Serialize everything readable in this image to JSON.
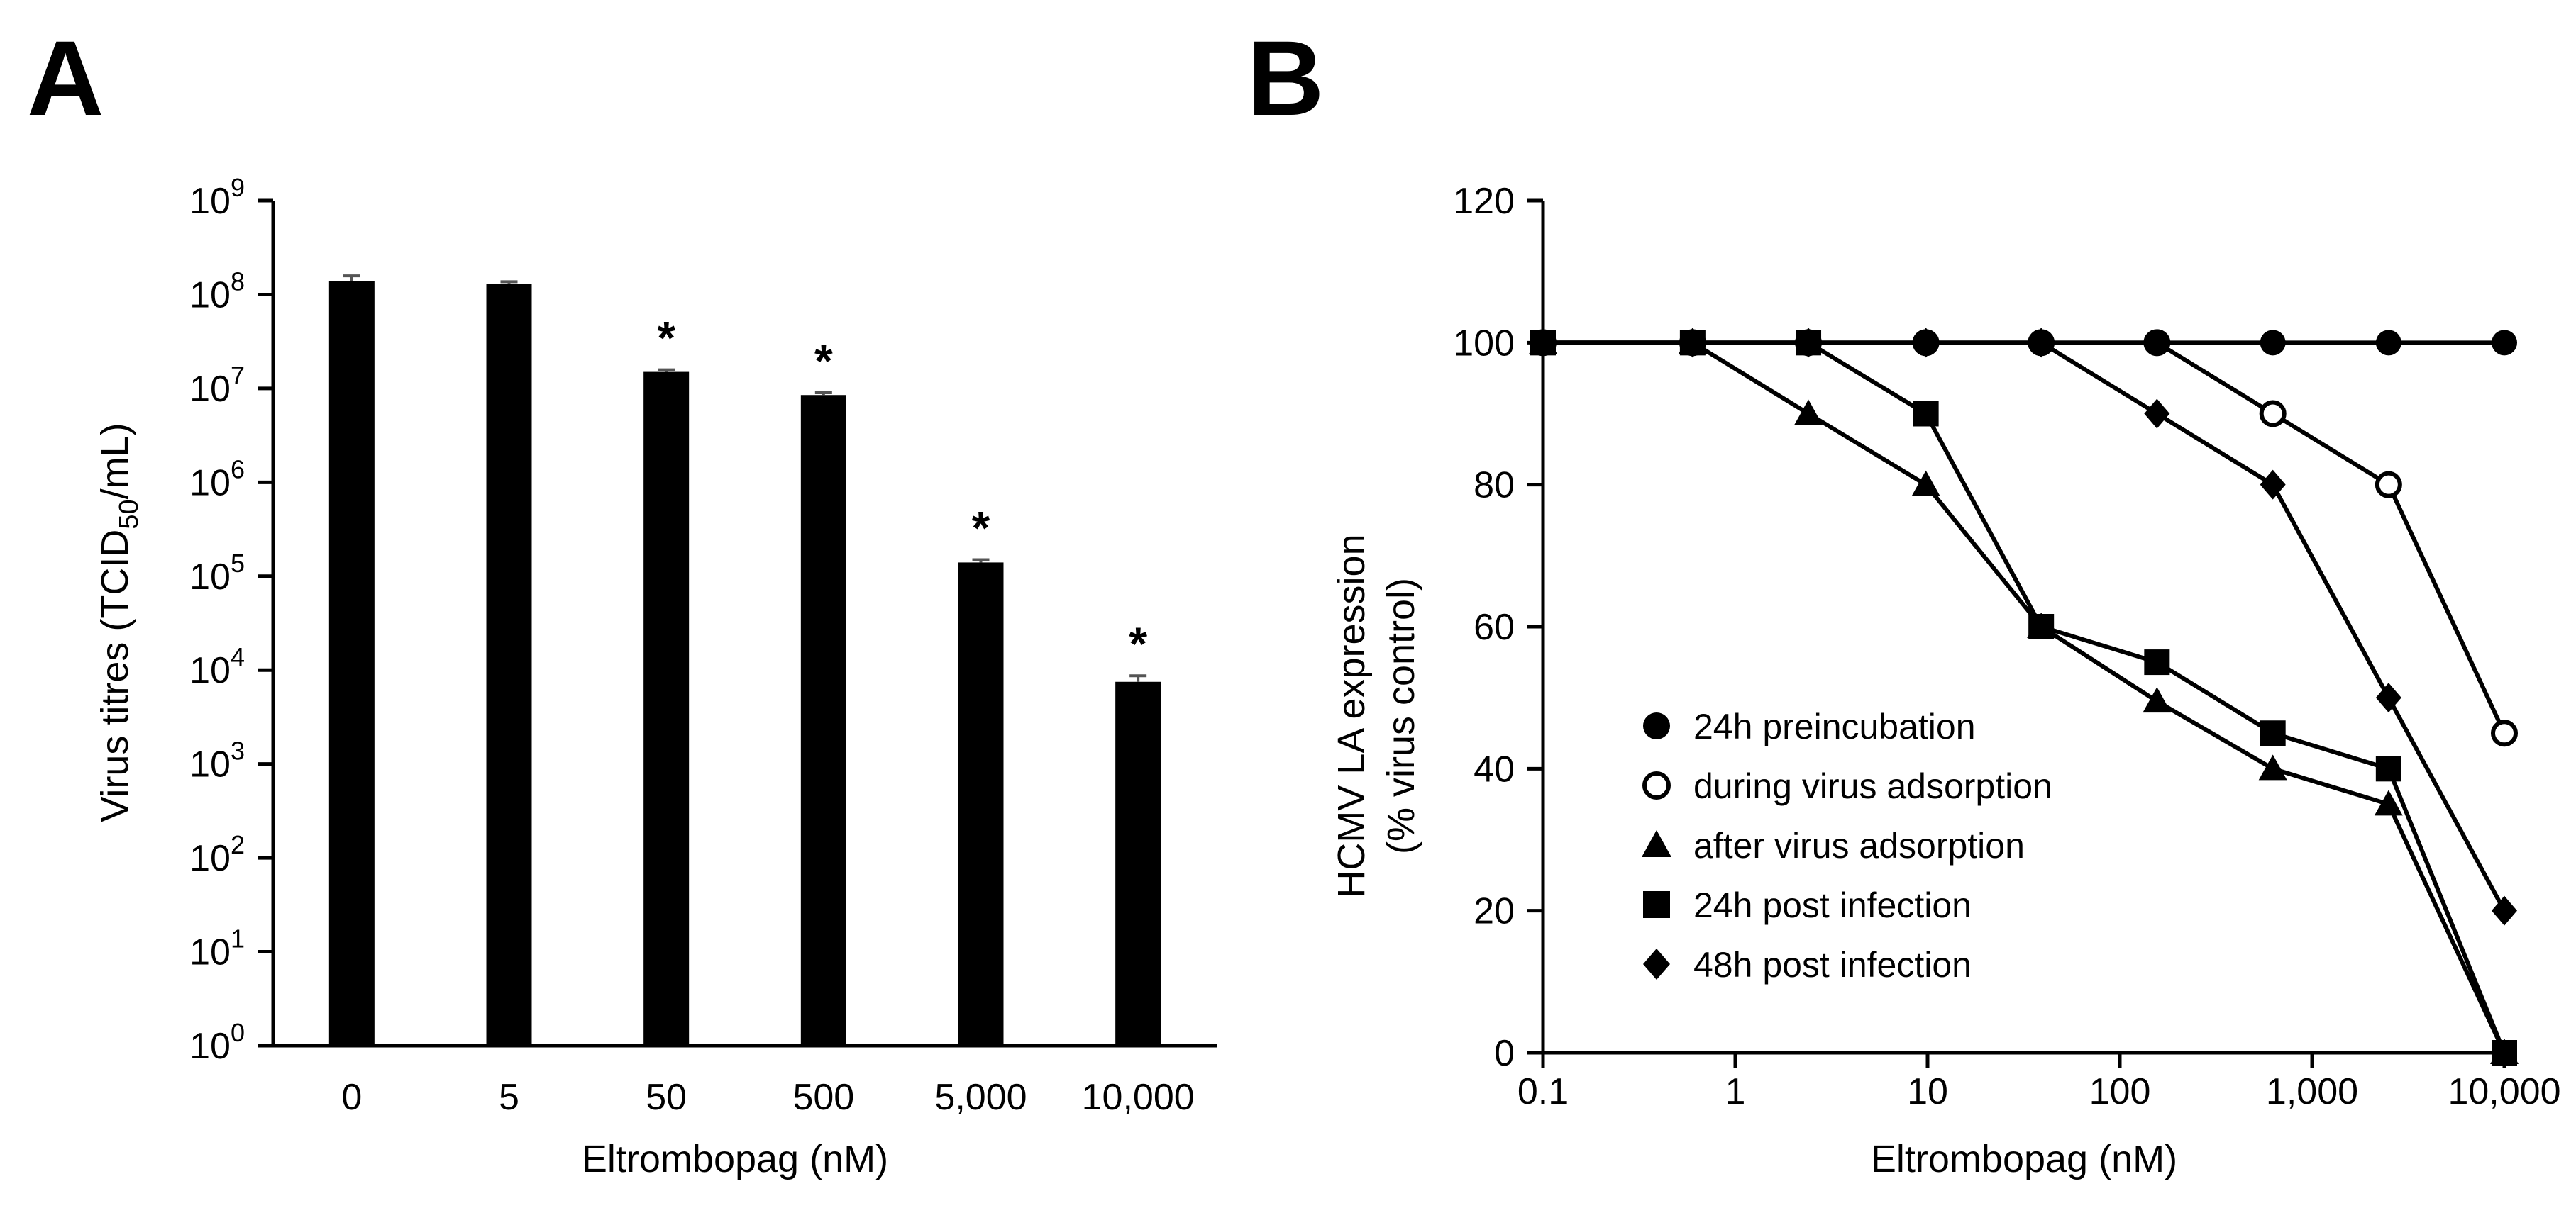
{
  "chart_data": [
    {
      "panel": "A",
      "type": "bar",
      "scale": "log10",
      "categories": [
        "0",
        "5",
        "50",
        "500",
        "5,000",
        "10,000"
      ],
      "values": [
        138000000,
        130000000,
        15000000,
        8500000,
        140000,
        7500
      ],
      "error_upper": [
        158000000,
        137000000,
        15800000,
        9000000,
        150000,
        8700
      ],
      "significant": [
        false,
        false,
        true,
        true,
        true,
        true
      ],
      "significance_marker": "*",
      "xlabel": "Eltrombopag (nM)",
      "ylabel_prefix": "Virus titres (TCID",
      "ylabel_sub": "50",
      "ylabel_suffix": "/mL)",
      "y_tick_base": "10",
      "y_tick_exponents": [
        "0",
        "1",
        "2",
        "3",
        "4",
        "5",
        "6",
        "7",
        "8",
        "9"
      ],
      "ylim": [
        1,
        1000000000
      ],
      "bar_color": "#000000"
    },
    {
      "panel": "B",
      "type": "line",
      "xscale": "log10",
      "x_tick_labels": [
        "0.1",
        "1",
        "10",
        "100",
        "1,000",
        "10,000"
      ],
      "x_tick_values": [
        0.1,
        1,
        10,
        100,
        1000,
        10000
      ],
      "xlim": [
        0.1,
        10000
      ],
      "y_tick_labels": [
        "0",
        "20",
        "40",
        "60",
        "80",
        "100",
        "120"
      ],
      "ylim": [
        0,
        120
      ],
      "xlabel": "Eltrombopag (nM)",
      "ylabel_line1": "HCMV LA expression",
      "ylabel_line2": "(% virus control)",
      "series": [
        {
          "name": "24h preincubation",
          "marker": "circle-filled",
          "x": [
            0.1,
            0.6,
            2.4,
            9.8,
            39,
            156,
            625,
            2500,
            10000
          ],
          "y": [
            100,
            100,
            100,
            100,
            100,
            100,
            100,
            100,
            100
          ]
        },
        {
          "name": "during virus adsorption",
          "marker": "circle-open",
          "x": [
            0.1,
            0.6,
            2.4,
            9.8,
            39,
            156,
            625,
            2500,
            10000
          ],
          "y": [
            100,
            100,
            100,
            100,
            100,
            100,
            90,
            80,
            45
          ]
        },
        {
          "name": "after virus adsorption",
          "marker": "triangle",
          "x": [
            0.1,
            0.6,
            2.4,
            9.8,
            39,
            156,
            625,
            2500,
            10000
          ],
          "y": [
            100,
            100,
            90,
            80,
            60,
            49.5,
            40,
            35,
            0
          ]
        },
        {
          "name": "24h post infection",
          "marker": "square",
          "x": [
            0.1,
            0.6,
            2.4,
            9.8,
            39,
            156,
            625,
            2500,
            10000
          ],
          "y": [
            100,
            100,
            100,
            90,
            60,
            55,
            45,
            40,
            0
          ]
        },
        {
          "name": "48h post infection",
          "marker": "diamond",
          "x": [
            0.1,
            0.6,
            2.4,
            9.8,
            39,
            156,
            625,
            2500,
            10000
          ],
          "y": [
            100,
            100,
            100,
            100,
            100,
            90,
            80,
            50,
            20
          ]
        }
      ]
    }
  ],
  "panel_labels": [
    "A",
    "B"
  ]
}
